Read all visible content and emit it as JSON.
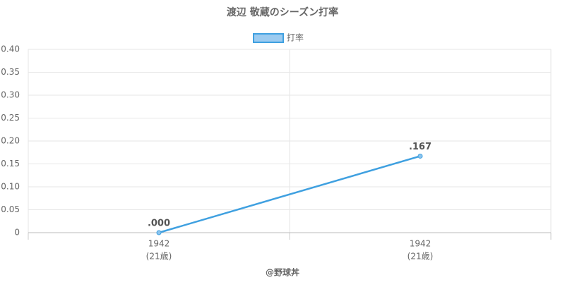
{
  "chart_data": {
    "type": "line",
    "title": "渡辺 敬蔵のシーズン打率",
    "categories": [
      [
        "1942",
        "(21歳)"
      ],
      [
        "1942",
        "(21歳)"
      ]
    ],
    "series": [
      {
        "name": "打率",
        "color": "#3fa0e0",
        "values": [
          0,
          0.167
        ],
        "value_labels": [
          ".000",
          ".167"
        ]
      }
    ],
    "ylim": [
      0,
      0.4
    ],
    "yticks": [
      0,
      0.05,
      {
        "value": 0.1,
        "label": "0.10"
      },
      0.15,
      {
        "value": 0.2,
        "label": "0.20"
      },
      0.25,
      {
        "value": 0.3,
        "label": "0.30"
      },
      0.35,
      {
        "value": 0.4,
        "label": "0.40"
      }
    ],
    "grid": true,
    "legend": "top",
    "credit": "@野球丼"
  }
}
